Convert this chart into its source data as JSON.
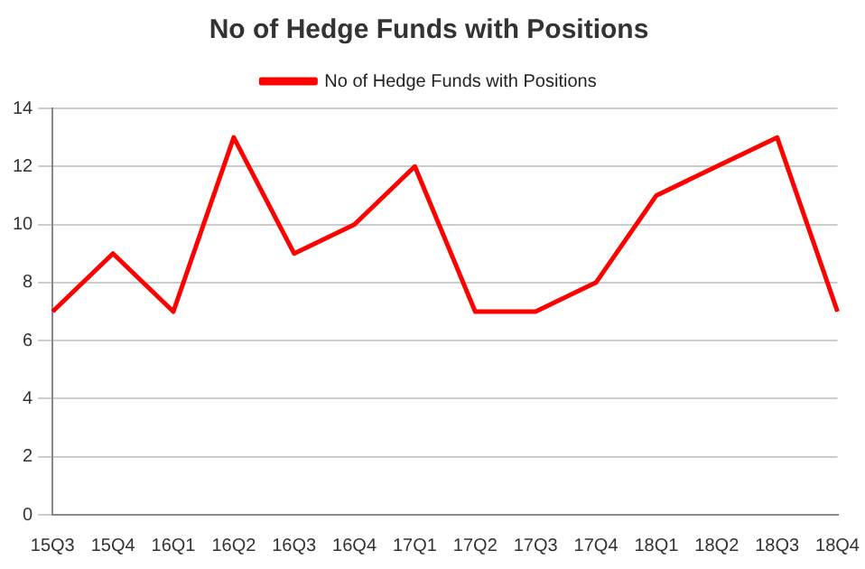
{
  "chart_data": {
    "type": "line",
    "title": "No of Hedge Funds with Positions",
    "categories": [
      "15Q3",
      "15Q4",
      "16Q1",
      "16Q2",
      "16Q3",
      "16Q4",
      "17Q1",
      "17Q2",
      "17Q3",
      "17Q4",
      "18Q1",
      "18Q2",
      "18Q3",
      "18Q4"
    ],
    "series": [
      {
        "name": "No of Hedge Funds with Positions",
        "color": "#ff0000",
        "values": [
          7,
          9,
          7,
          13,
          9,
          10,
          12,
          7,
          7,
          8,
          11,
          12,
          13,
          7
        ]
      }
    ],
    "ylim": [
      0,
      14
    ],
    "yticks": [
      0,
      2,
      4,
      6,
      8,
      10,
      12,
      14
    ],
    "grid": "y",
    "legend": "top",
    "marker": "none",
    "line_style": "solid"
  }
}
